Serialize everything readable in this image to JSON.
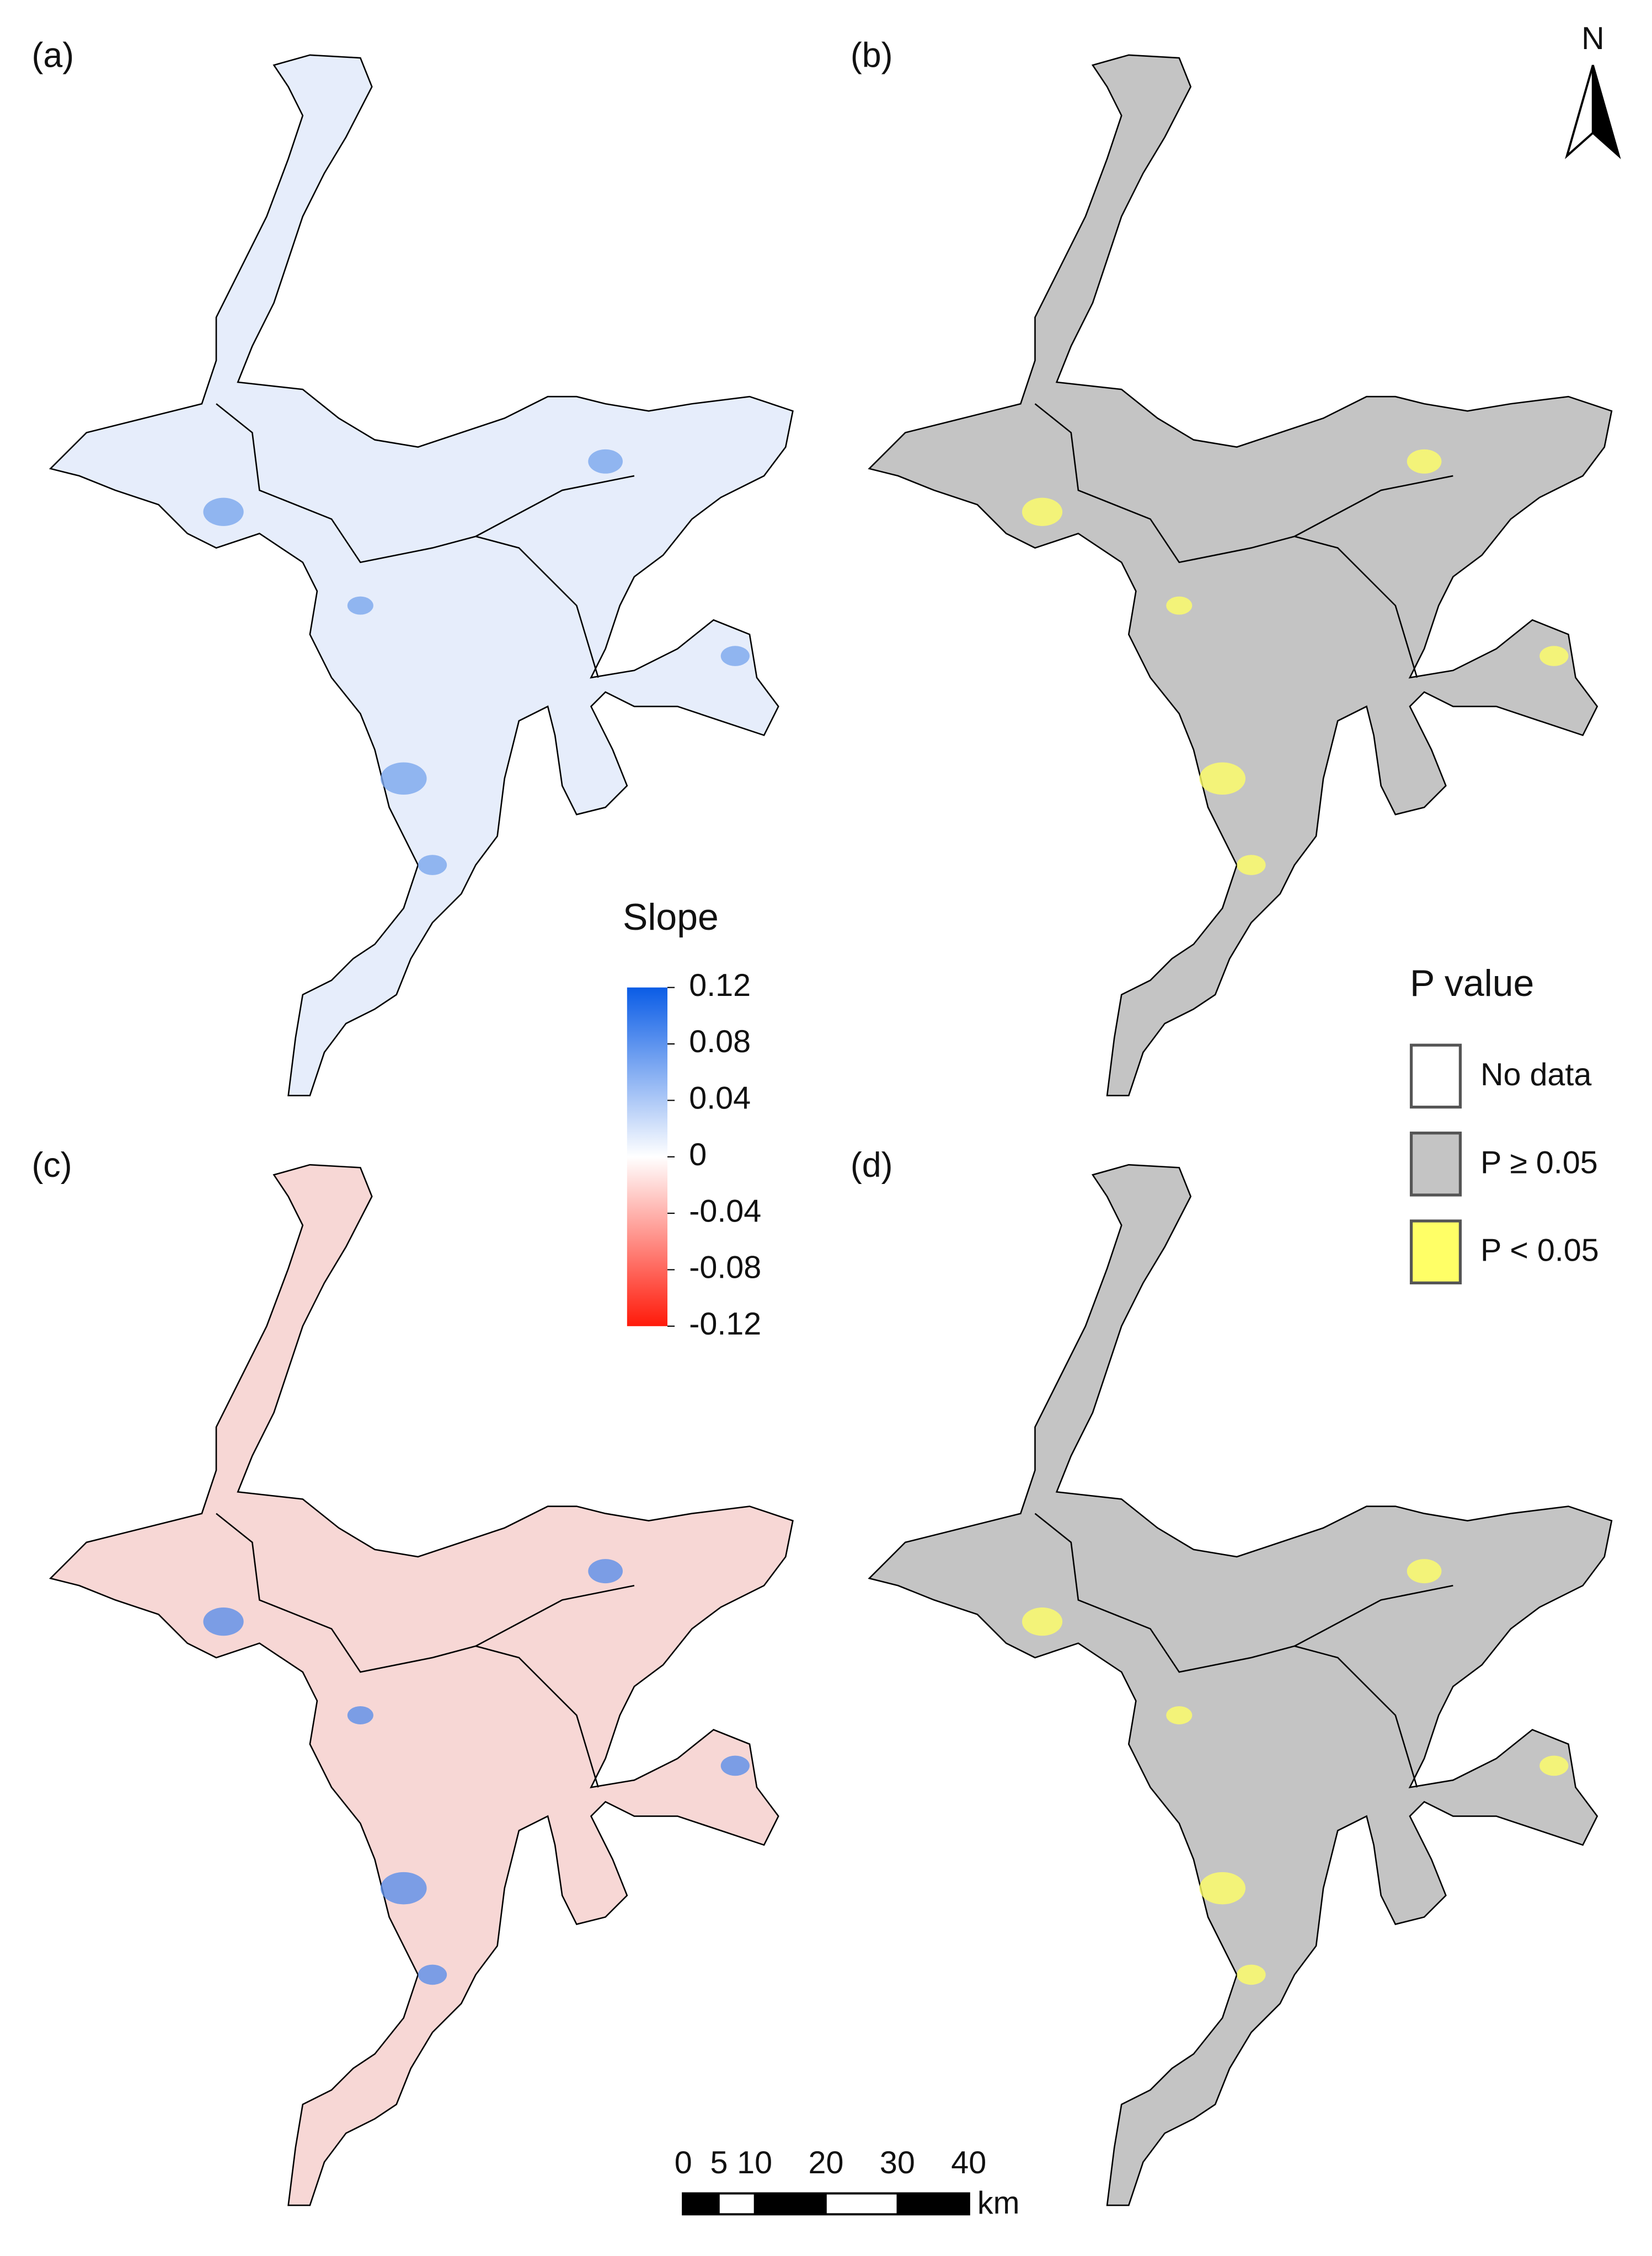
{
  "panels": [
    {
      "label": "(a)",
      "fill": "#e6edfb",
      "accent": "#7aa6ee"
    },
    {
      "label": "(b)",
      "fill": "#c4c4c4",
      "accent": "#ffff66"
    },
    {
      "label": "(c)",
      "fill": "#f7d7d5",
      "accent": "#5b8fe8"
    },
    {
      "label": "(d)",
      "fill": "#c4c4c4",
      "accent": "#ffff66"
    }
  ],
  "slope_legend": {
    "title": "Slope",
    "ticks": [
      0.12,
      0.08,
      0.04,
      0,
      -0.04,
      -0.08,
      -0.12
    ],
    "colors": [
      "#0a5ce6",
      "#ffffff",
      "#ff1a0a"
    ]
  },
  "p_legend": {
    "title": "P value",
    "items": [
      {
        "label": "No data",
        "color": "#ffffff"
      },
      {
        "label": "P ≥ 0.05",
        "color": "#c4c4c4"
      },
      {
        "label": "P < 0.05",
        "color": "#ffff66"
      }
    ]
  },
  "scale_bar": {
    "ticks": [
      0,
      5,
      10,
      20,
      30,
      40
    ],
    "unit": "km"
  },
  "north": "N"
}
